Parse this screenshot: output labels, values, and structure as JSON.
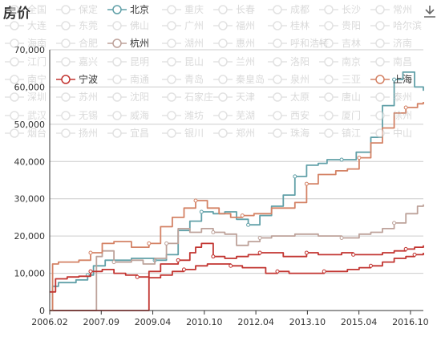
{
  "chart_data": {
    "type": "line",
    "title": "房价",
    "xlabel": "",
    "ylabel": "",
    "x_ticks": [
      "2006.02",
      "2007.09",
      "2009.04",
      "2010.10",
      "2012.04",
      "2013.10",
      "2015.04",
      "2016.10"
    ],
    "x_range": [
      0,
      128
    ],
    "ylim": [
      0,
      70000
    ],
    "y_ticks": [
      0,
      10000,
      20000,
      30000,
      40000,
      50000,
      60000,
      70000
    ],
    "y_tick_labels": [
      "0",
      "10,000",
      "20,000",
      "30,000",
      "40,000",
      "50,000",
      "60,000",
      "70,000"
    ],
    "grid": "horizontal",
    "legend_placement": "top",
    "legend": [
      "全国",
      "保定",
      "北京",
      "重庆",
      "长春",
      "成都",
      "长沙",
      "常州",
      "大连",
      "东莞",
      "佛山",
      "广州",
      "福州",
      "桂林",
      "贵阳",
      "哈尔滨",
      "海南",
      "合肥",
      "杭州",
      "湖州",
      "惠州",
      "呼和浩特",
      "吉林",
      "济南",
      "江门",
      "嘉兴",
      "昆明",
      "昆山",
      "兰州",
      "洛阳",
      "南京",
      "南昌",
      "南宁",
      "宁波",
      "南通",
      "青岛",
      "秦皇岛",
      "泉州",
      "三亚",
      "上海",
      "深圳",
      "苏州",
      "沈阳",
      "石家庄",
      "天津",
      "太原",
      "唐山",
      "泰州",
      "武汉",
      "无锡",
      "威海",
      "潍坊",
      "芜湖",
      "西安",
      "厦门",
      "徐州",
      "烟台",
      "扬州",
      "宜昌",
      "银川",
      "郑州",
      "珠海",
      "镇江",
      "中山"
    ],
    "active_series": [
      "北京",
      "杭州",
      "宁波",
      "上海"
    ],
    "series": [
      {
        "name": "北京",
        "color": "#61a0a8",
        "points": [
          [
            0,
            0
          ],
          [
            1,
            6500
          ],
          [
            3,
            7500
          ],
          [
            9,
            8200
          ],
          [
            13,
            9500
          ],
          [
            15,
            12000
          ],
          [
            19,
            13500
          ],
          [
            28,
            14000
          ],
          [
            36,
            13500
          ],
          [
            40,
            15000
          ],
          [
            44,
            21500
          ],
          [
            48,
            24000
          ],
          [
            52,
            26500
          ],
          [
            56,
            26000
          ],
          [
            60,
            26500
          ],
          [
            64,
            24500
          ],
          [
            68,
            23000
          ],
          [
            72,
            25500
          ],
          [
            76,
            28000
          ],
          [
            80,
            31000
          ],
          [
            84,
            36000
          ],
          [
            88,
            39000
          ],
          [
            92,
            39500
          ],
          [
            95,
            40500
          ],
          [
            100,
            40500
          ],
          [
            105,
            42500
          ],
          [
            110,
            46500
          ],
          [
            114,
            55000
          ],
          [
            118,
            62000
          ],
          [
            121,
            64000
          ],
          [
            125,
            60000
          ],
          [
            128,
            59000
          ]
        ]
      },
      {
        "name": "杭州",
        "color": "#bda29a",
        "points": [
          [
            0,
            0
          ],
          [
            14,
            0
          ],
          [
            16,
            14500
          ],
          [
            18,
            16000
          ],
          [
            22,
            13000
          ],
          [
            28,
            13500
          ],
          [
            32,
            12500
          ],
          [
            36,
            14000
          ],
          [
            40,
            18000
          ],
          [
            44,
            22000
          ],
          [
            48,
            21000
          ],
          [
            52,
            22000
          ],
          [
            56,
            21000
          ],
          [
            60,
            20500
          ],
          [
            64,
            17500
          ],
          [
            68,
            18500
          ],
          [
            72,
            19500
          ],
          [
            76,
            20000
          ],
          [
            84,
            20500
          ],
          [
            92,
            20000
          ],
          [
            100,
            19500
          ],
          [
            106,
            20500
          ],
          [
            110,
            21000
          ],
          [
            114,
            22000
          ],
          [
            118,
            23500
          ],
          [
            122,
            26000
          ],
          [
            126,
            28000
          ],
          [
            128,
            28500
          ]
        ]
      },
      {
        "name": "宁波",
        "color": "#c23531",
        "points": [
          [
            0,
            0
          ],
          [
            33,
            0
          ],
          [
            34,
            10500
          ],
          [
            38,
            12500
          ],
          [
            44,
            13500
          ],
          [
            48,
            15500
          ],
          [
            50,
            17000
          ],
          [
            52,
            18000
          ],
          [
            56,
            14500
          ],
          [
            60,
            14000
          ],
          [
            64,
            14500
          ],
          [
            68,
            15000
          ],
          [
            72,
            15500
          ],
          [
            76,
            15500
          ],
          [
            80,
            14500
          ],
          [
            84,
            14500
          ],
          [
            88,
            15500
          ],
          [
            92,
            15000
          ],
          [
            96,
            15000
          ],
          [
            100,
            15500
          ],
          [
            104,
            15000
          ],
          [
            110,
            15000
          ],
          [
            114,
            15500
          ],
          [
            118,
            16000
          ],
          [
            122,
            16500
          ],
          [
            125,
            17000
          ],
          [
            128,
            17500
          ]
        ]
      },
      {
        "name": "上海",
        "color": "#d48265",
        "points": [
          [
            0,
            0
          ],
          [
            1,
            12500
          ],
          [
            3,
            13000
          ],
          [
            10,
            13500
          ],
          [
            14,
            15500
          ],
          [
            18,
            18000
          ],
          [
            22,
            18500
          ],
          [
            28,
            17000
          ],
          [
            34,
            18000
          ],
          [
            38,
            22500
          ],
          [
            42,
            25000
          ],
          [
            46,
            27500
          ],
          [
            50,
            29500
          ],
          [
            54,
            27500
          ],
          [
            58,
            26000
          ],
          [
            62,
            25000
          ],
          [
            66,
            25500
          ],
          [
            70,
            26000
          ],
          [
            76,
            27500
          ],
          [
            84,
            29000
          ],
          [
            88,
            34000
          ],
          [
            92,
            36500
          ],
          [
            98,
            37500
          ],
          [
            102,
            38000
          ],
          [
            106,
            41000
          ],
          [
            110,
            45000
          ],
          [
            114,
            49000
          ],
          [
            118,
            53000
          ],
          [
            122,
            54500
          ],
          [
            126,
            55500
          ],
          [
            128,
            56000
          ]
        ]
      },
      {
        "name": "宁波-2",
        "color": "#c23531",
        "points": [
          [
            0,
            5000
          ],
          [
            2,
            8500
          ],
          [
            6,
            9000
          ],
          [
            10,
            9200
          ],
          [
            14,
            10500
          ],
          [
            18,
            11000
          ],
          [
            22,
            10000
          ],
          [
            26,
            9500
          ],
          [
            30,
            9000
          ],
          [
            34,
            8800
          ],
          [
            38,
            9500
          ],
          [
            42,
            10500
          ],
          [
            46,
            11000
          ],
          [
            50,
            12000
          ],
          [
            54,
            12500
          ],
          [
            58,
            12500
          ],
          [
            62,
            12000
          ],
          [
            66,
            11500
          ],
          [
            70,
            11500
          ],
          [
            74,
            10000
          ],
          [
            78,
            10500
          ],
          [
            82,
            10000
          ],
          [
            86,
            10000
          ],
          [
            90,
            10000
          ],
          [
            94,
            10500
          ],
          [
            98,
            10500
          ],
          [
            102,
            11000
          ],
          [
            106,
            11500
          ],
          [
            110,
            12000
          ],
          [
            114,
            13000
          ],
          [
            118,
            14000
          ],
          [
            122,
            14500
          ],
          [
            125,
            15000
          ],
          [
            128,
            15500
          ]
        ]
      }
    ]
  }
}
